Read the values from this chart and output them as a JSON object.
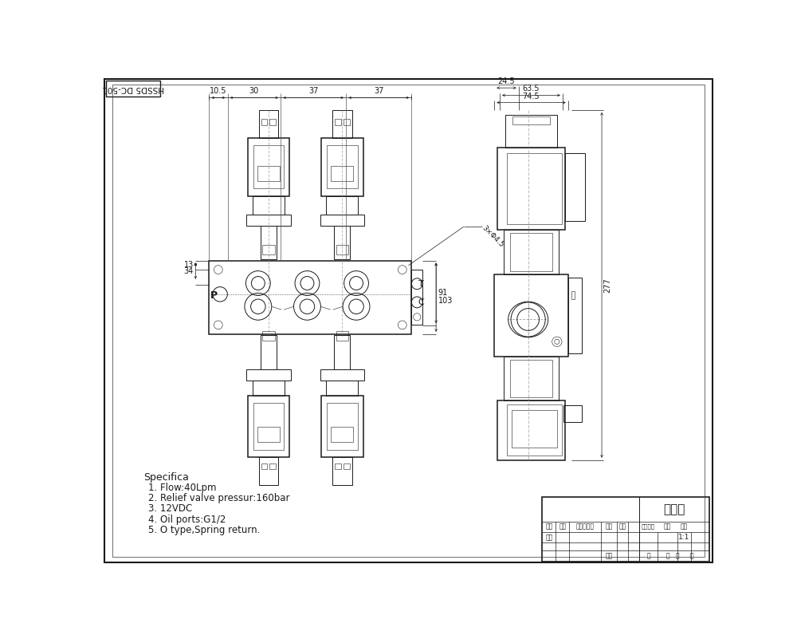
{
  "title_block": {
    "main_title": "外形图",
    "scale": "1:1",
    "col_headers": [
      "标记",
      "处数",
      "更改文件号",
      "签字",
      "日期"
    ],
    "row1_labels": [
      "设计"
    ],
    "right_labels": [
      "图样标记",
      "数量",
      "比例"
    ],
    "scale_val": "1:1",
    "bottom_row": [
      "日期",
      "共",
      "张",
      "第",
      "张"
    ]
  },
  "header_label": "HSSD5 DC-501",
  "specs": [
    "Specifica",
    "1. Flow:40Lpm",
    "2. Relief valve pressur:160bar",
    "3. 12VDC",
    "4. Oil ports:G1/2",
    "5. O type,Spring return."
  ],
  "front_dims": {
    "top_dims": [
      "10.5",
      "30",
      "37",
      "37"
    ],
    "right_dims": [
      "91",
      "103"
    ],
    "left_dims": [
      "13",
      "34"
    ],
    "leader_label": "3×Φ4.5"
  },
  "side_dims": {
    "top_dims": [
      "74.5",
      "63.5",
      "24.5"
    ],
    "right_dim": "277"
  },
  "bg_color": "#ffffff",
  "line_color": "#1a1a1a",
  "font_size_spec": 9,
  "font_size_dim": 7,
  "font_size_title": 12
}
